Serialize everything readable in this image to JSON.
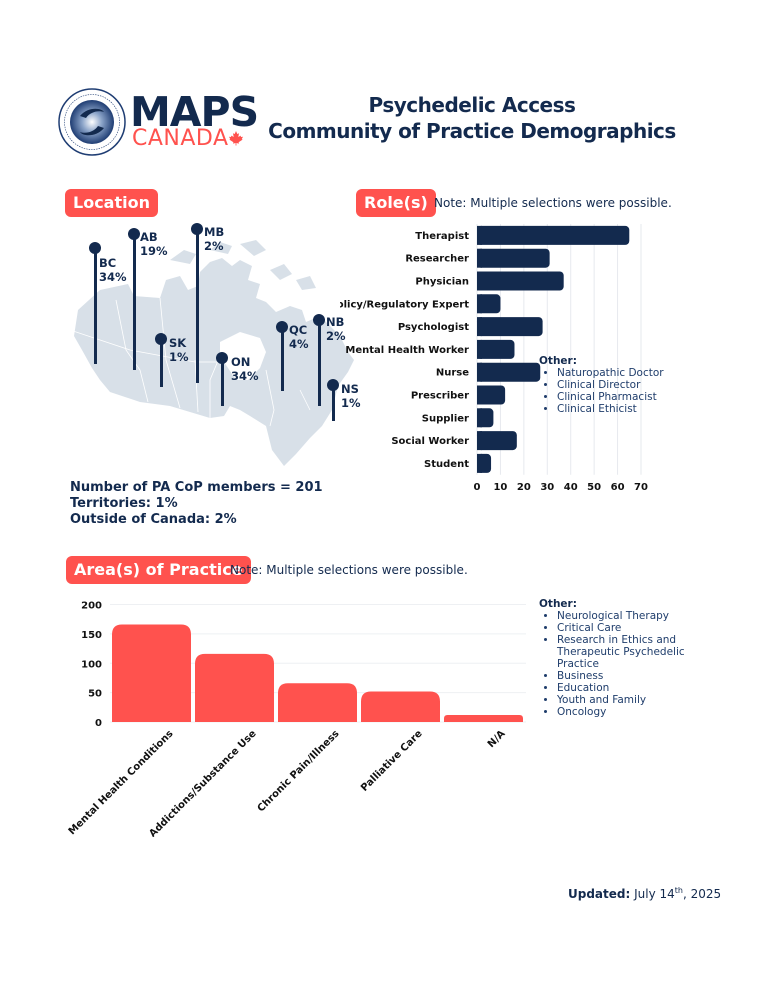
{
  "logo": {
    "brand": "MAPS",
    "country": "CANADA",
    "seal_text": "MULTIDISCIPLINARY ASSOCIATION FOR PSYCHEDELIC STUDIES"
  },
  "header": {
    "title_line1": "Psychedelic Access",
    "title_line2": "Community of Practice Demographics"
  },
  "location": {
    "badge": "Location",
    "pins": [
      {
        "province": "BC",
        "percent": "34%"
      },
      {
        "province": "AB",
        "percent": "19%"
      },
      {
        "province": "MB",
        "percent": "2%"
      },
      {
        "province": "SK",
        "percent": "1%"
      },
      {
        "province": "ON",
        "percent": "34%"
      },
      {
        "province": "QC",
        "percent": "4%"
      },
      {
        "province": "NB",
        "percent": "2%"
      },
      {
        "province": "NS",
        "percent": "1%"
      }
    ],
    "summary": [
      "Number of PA CoP members = 201",
      "Territories: 1%",
      "Outside of Canada: 2%"
    ]
  },
  "roles": {
    "badge": "Role(s)",
    "note": "Note: Multiple selections were possible.",
    "other_heading": "Other:",
    "other_items": [
      "Naturopathic Doctor",
      "Clinical Director",
      "Clinical Pharmacist",
      "Clinical Ethicist"
    ]
  },
  "areas": {
    "badge": "Area(s) of Practice",
    "note": "Note: Multiple selections were possible.",
    "other_heading": "Other:",
    "other_items": [
      "Neurological Therapy",
      "Critical Care",
      "Research in Ethics and Therapeutic Psychedelic Practice",
      "Business",
      "Education",
      "Youth and Family",
      "Oncology"
    ]
  },
  "footer": {
    "updated_label": "Updated:",
    "updated_date_pre": "July 14",
    "updated_sup": "th",
    "updated_date_post": ", 2025"
  },
  "colors": {
    "navy": "#132a4e",
    "coral": "#ff524e",
    "map": "#d8e0e8"
  },
  "chart_data": [
    {
      "type": "bar",
      "orientation": "horizontal",
      "title": "Role(s)",
      "categories": [
        "Therapist",
        "Researcher",
        "Physician",
        "Policy/Regulatory Expert",
        "Psychologist",
        "Mental Health Worker",
        "Nurse",
        "Prescriber",
        "Supplier",
        "Social Worker",
        "Student"
      ],
      "values": [
        65,
        31,
        37,
        10,
        28,
        16,
        27,
        12,
        7,
        17,
        6
      ],
      "xlim": [
        0,
        70
      ],
      "xticks": [
        "0",
        "10",
        "20",
        "30",
        "40",
        "50",
        "60",
        "70"
      ],
      "grid": true,
      "color": "#132a4e"
    },
    {
      "type": "bar",
      "orientation": "vertical",
      "title": "Area(s) of Practice",
      "categories": [
        "Mental Health Conditions",
        "Addictions/Substance Use",
        "Chronic Pain/Illness",
        "Palliative Care",
        "N/A"
      ],
      "values": [
        166,
        116,
        66,
        52,
        12
      ],
      "ylim": [
        0,
        200
      ],
      "yticks": [
        "0",
        "50",
        "100",
        "150",
        "200"
      ],
      "grid": true,
      "color": "#ff524e"
    }
  ]
}
